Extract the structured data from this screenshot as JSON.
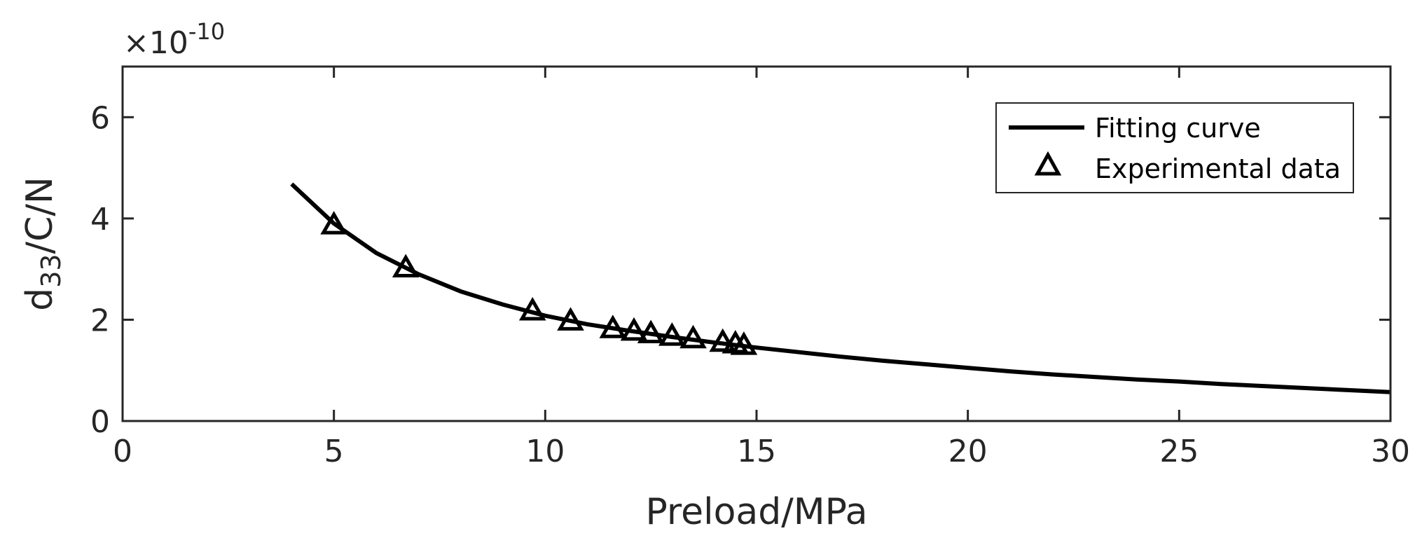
{
  "chart_data": {
    "type": "line",
    "xlabel": "Preload/MPa",
    "ylabel_main": "d",
    "ylabel_sub": "33",
    "ylabel_rest": "/C/N",
    "y_multiplier_prefix": "×10",
    "y_multiplier_exp": "-10",
    "xlim": [
      0,
      30
    ],
    "ylim": [
      0,
      7
    ],
    "x_ticks": [
      0,
      5,
      10,
      15,
      20,
      25,
      30
    ],
    "x_tick_labels": [
      "0",
      "5",
      "10",
      "15",
      "20",
      "25",
      "30"
    ],
    "y_ticks": [
      0,
      2,
      4,
      6
    ],
    "y_tick_labels": [
      "0",
      "2",
      "4",
      "6"
    ],
    "grid": false,
    "legend_position": "top-right",
    "series": [
      {
        "name": "Fitting curve",
        "style": "solid line",
        "color": "#000000",
        "x": [
          4,
          5,
          6,
          7,
          8,
          9,
          10,
          11,
          12,
          13,
          14,
          15,
          16,
          17,
          18,
          19,
          20,
          21,
          22,
          23,
          24,
          25,
          26,
          27,
          28,
          29,
          30
        ],
        "y": [
          4.68,
          3.9,
          3.32,
          2.9,
          2.56,
          2.3,
          2.08,
          1.91,
          1.78,
          1.66,
          1.55,
          1.45,
          1.36,
          1.27,
          1.19,
          1.12,
          1.05,
          0.98,
          0.92,
          0.87,
          0.82,
          0.78,
          0.73,
          0.69,
          0.65,
          0.61,
          0.57
        ]
      },
      {
        "name": "Experimental data",
        "style": "triangle markers",
        "color": "#000000",
        "x": [
          5.0,
          6.7,
          9.7,
          10.6,
          11.6,
          12.1,
          12.5,
          13.0,
          13.5,
          14.2,
          14.5,
          14.7
        ],
        "y": [
          3.9,
          3.05,
          2.2,
          2.0,
          1.85,
          1.8,
          1.75,
          1.7,
          1.65,
          1.58,
          1.55,
          1.52
        ]
      }
    ]
  }
}
